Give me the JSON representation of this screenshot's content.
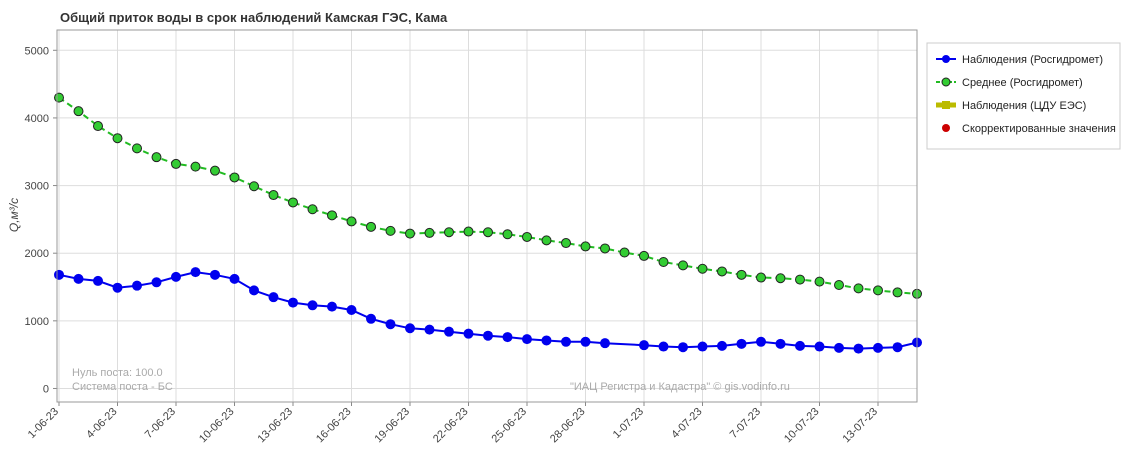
{
  "chart_data": {
    "type": "line",
    "title": "Общий приток воды в срок наблюдений Камская ГЭС,  Кама",
    "ylabel": "Q,м³/с",
    "ylim": [
      -200,
      5300
    ],
    "yticks": [
      0,
      1000,
      2000,
      3000,
      4000,
      5000
    ],
    "xtick_labels": [
      "1-06-23",
      "4-06-23",
      "7-06-23",
      "10-06-23",
      "13-06-23",
      "16-06-23",
      "19-06-23",
      "22-06-23",
      "25-06-23",
      "28-06-23",
      "1-07-23",
      "4-07-23",
      "7-07-23",
      "10-07-23",
      "13-07-23"
    ],
    "xtick_days": [
      0,
      3,
      6,
      9,
      12,
      15,
      18,
      21,
      24,
      27,
      30,
      33,
      36,
      39,
      42
    ],
    "xlim_days": [
      0,
      44
    ],
    "grid": true,
    "legend_position": "right",
    "series": [
      {
        "name": "Наблюдения (Росгидромет)",
        "color": "#0000ee",
        "style": "solid",
        "x": [
          0,
          1,
          2,
          3,
          4,
          5,
          6,
          7,
          8,
          9,
          10,
          11,
          12,
          13,
          14,
          15,
          16,
          17,
          18,
          19,
          20,
          21,
          22,
          23,
          24,
          25,
          26,
          27,
          28,
          30,
          31,
          32,
          33,
          34,
          35,
          36,
          37,
          38,
          39,
          40,
          41,
          42,
          43,
          44
        ],
        "values": [
          1680,
          1620,
          1590,
          1490,
          1520,
          1570,
          1650,
          1720,
          1680,
          1620,
          1450,
          1350,
          1270,
          1230,
          1210,
          1160,
          1030,
          950,
          890,
          870,
          840,
          810,
          780,
          760,
          730,
          710,
          690,
          690,
          670,
          640,
          620,
          610,
          620,
          630,
          660,
          690,
          660,
          630,
          620,
          600,
          590,
          600,
          610,
          680
        ]
      },
      {
        "name": "Среднее (Росгидромет)",
        "color": "#22bb22",
        "marker_color": "#33cc33",
        "style": "dashed",
        "x": [
          0,
          1,
          2,
          3,
          4,
          5,
          6,
          7,
          8,
          9,
          10,
          11,
          12,
          13,
          14,
          15,
          16,
          17,
          18,
          19,
          20,
          21,
          22,
          23,
          24,
          25,
          26,
          27,
          28,
          29,
          30,
          31,
          32,
          33,
          34,
          35,
          36,
          37,
          38,
          39,
          40,
          41,
          42,
          43,
          44
        ],
        "values": [
          4300,
          4100,
          3880,
          3700,
          3550,
          3420,
          3320,
          3280,
          3220,
          3120,
          2990,
          2860,
          2750,
          2650,
          2560,
          2470,
          2390,
          2330,
          2290,
          2300,
          2310,
          2320,
          2310,
          2280,
          2240,
          2190,
          2150,
          2100,
          2070,
          2010,
          1960,
          1870,
          1820,
          1770,
          1730,
          1680,
          1640,
          1630,
          1610,
          1580,
          1530,
          1480,
          1450,
          1420,
          1400
        ]
      },
      {
        "name": "Наблюдения (ЦДУ ЕЭС)",
        "color": "#bbbb00",
        "style": "solid",
        "x": [],
        "values": []
      },
      {
        "name": "Скорректированные значения",
        "color": "#cc0000",
        "style": "marker",
        "x": [],
        "values": []
      }
    ],
    "annotations": {
      "zero_post": "Нуль поста: 100.0",
      "post_system": "Система поста - БС",
      "credit": "\"ИАЦ Регистра и Кадастра\" © gis.vodinfo.ru"
    }
  }
}
